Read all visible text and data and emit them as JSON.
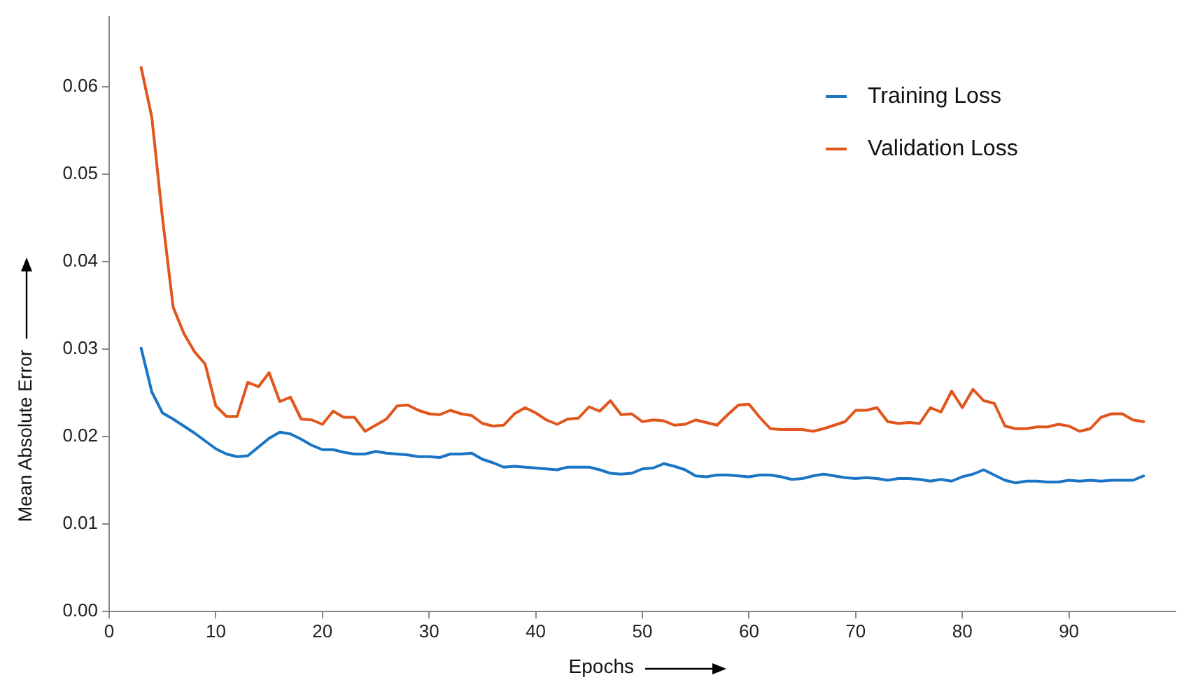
{
  "chart_data": {
    "type": "line",
    "xlabel": "Epochs",
    "ylabel": "Mean Absolute Error",
    "x": [
      3,
      4,
      5,
      6,
      7,
      8,
      9,
      10,
      11,
      12,
      13,
      14,
      15,
      16,
      17,
      18,
      19,
      20,
      21,
      22,
      23,
      24,
      25,
      26,
      27,
      28,
      29,
      30,
      31,
      32,
      33,
      34,
      35,
      36,
      37,
      38,
      39,
      40,
      41,
      42,
      43,
      44,
      45,
      46,
      47,
      48,
      49,
      50,
      51,
      52,
      53,
      54,
      55,
      56,
      57,
      58,
      59,
      60,
      61,
      62,
      63,
      64,
      65,
      66,
      67,
      68,
      69,
      70,
      71,
      72,
      73,
      74,
      75,
      76,
      77,
      78,
      79,
      80,
      81,
      82,
      83,
      84,
      85,
      86,
      87,
      88,
      89,
      90,
      91,
      92,
      93,
      94,
      95,
      96,
      97
    ],
    "series": [
      {
        "name": "Training Loss",
        "color": "#1a75c4",
        "values": [
          0.0301,
          0.0251,
          0.0227,
          0.022,
          0.0212,
          0.0204,
          0.0195,
          0.0186,
          0.018,
          0.0177,
          0.0178,
          0.0188,
          0.0198,
          0.0205,
          0.0203,
          0.0197,
          0.019,
          0.0185,
          0.0185,
          0.0182,
          0.018,
          0.018,
          0.0183,
          0.0181,
          0.018,
          0.0179,
          0.0177,
          0.0177,
          0.0176,
          0.018,
          0.018,
          0.0181,
          0.0174,
          0.017,
          0.0165,
          0.0166,
          0.0165,
          0.0164,
          0.0163,
          0.0162,
          0.0165,
          0.0165,
          0.0165,
          0.0162,
          0.0158,
          0.0157,
          0.0158,
          0.0163,
          0.0164,
          0.0169,
          0.0166,
          0.0162,
          0.0155,
          0.0154,
          0.0156,
          0.0156,
          0.0155,
          0.0154,
          0.0156,
          0.0156,
          0.0154,
          0.0151,
          0.0152,
          0.0155,
          0.0157,
          0.0155,
          0.0153,
          0.0152,
          0.0153,
          0.0152,
          0.015,
          0.0152,
          0.0152,
          0.0151,
          0.0149,
          0.0151,
          0.0149,
          0.0154,
          0.0157,
          0.0162,
          0.0156,
          0.015,
          0.0147,
          0.0149,
          0.0149,
          0.0148,
          0.0148,
          0.015,
          0.0149,
          0.015,
          0.0149,
          0.015,
          0.015,
          0.015,
          0.0155
        ]
      },
      {
        "name": "Validation Loss",
        "color": "#e0561c",
        "values": [
          0.0622,
          0.0565,
          0.045,
          0.0348,
          0.0318,
          0.0297,
          0.0283,
          0.0235,
          0.0223,
          0.0223,
          0.0262,
          0.0257,
          0.0273,
          0.024,
          0.0245,
          0.022,
          0.0219,
          0.0214,
          0.0229,
          0.0222,
          0.0222,
          0.0206,
          0.0213,
          0.022,
          0.0235,
          0.0236,
          0.023,
          0.0226,
          0.0225,
          0.023,
          0.0226,
          0.0224,
          0.0215,
          0.0212,
          0.0213,
          0.0226,
          0.0233,
          0.0227,
          0.0219,
          0.0214,
          0.022,
          0.0221,
          0.0234,
          0.0229,
          0.0241,
          0.0225,
          0.0226,
          0.0217,
          0.0219,
          0.0218,
          0.0213,
          0.0214,
          0.0219,
          0.0216,
          0.0213,
          0.0225,
          0.0236,
          0.0237,
          0.0222,
          0.0209,
          0.0208,
          0.0208,
          0.0208,
          0.0206,
          0.0209,
          0.0213,
          0.0217,
          0.023,
          0.023,
          0.0233,
          0.0217,
          0.0215,
          0.0216,
          0.0215,
          0.0233,
          0.0228,
          0.0252,
          0.0233,
          0.0254,
          0.0241,
          0.0238,
          0.0212,
          0.0209,
          0.0209,
          0.0211,
          0.0211,
          0.0214,
          0.0212,
          0.0206,
          0.0209,
          0.0222,
          0.0226,
          0.0226,
          0.0219,
          0.0217
        ]
      }
    ],
    "xlim": [
      0,
      100
    ],
    "xticks": [
      0,
      10,
      20,
      30,
      40,
      50,
      60,
      70,
      80,
      90
    ],
    "ylim": [
      0,
      0.068
    ],
    "yticks": [
      {
        "value": 0,
        "label": "0.00"
      },
      {
        "value": 0.01,
        "label": "0.01"
      },
      {
        "value": 0.02,
        "label": "0.02"
      },
      {
        "value": 0.03,
        "label": "0.03"
      },
      {
        "value": 0.04,
        "label": "0.04"
      },
      {
        "value": 0.05,
        "label": "0.05"
      },
      {
        "value": 0.06,
        "label": "0.06"
      }
    ],
    "grid": false,
    "legend": "top right",
    "marker": "none",
    "line_style": "solid"
  }
}
